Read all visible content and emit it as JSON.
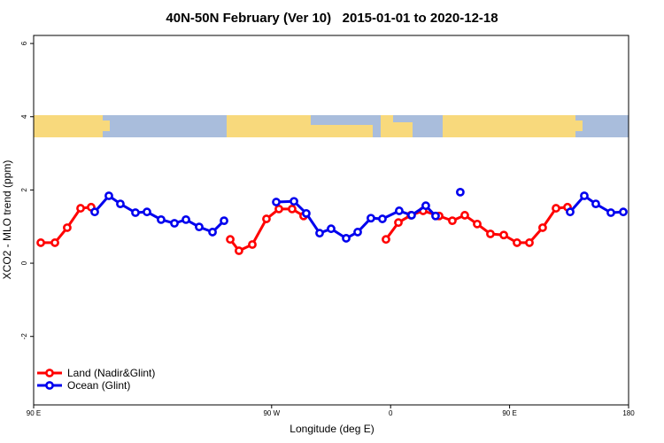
{
  "chart_data": {
    "type": "line",
    "title": "40N-50N February (Ver 10)   2015-01-01 to 2020-12-18",
    "xlabel": "Longitude (deg E)",
    "ylabel": "XCO2 - MLO trend (ppm)",
    "xlim": [
      90,
      540
    ],
    "ylim": [
      -3.87,
      6.22
    ],
    "xticks": [
      {
        "value": 90,
        "label": "90 E"
      },
      180,
      {
        "value": 270,
        "label": "90 W"
      },
      {
        "value": 360,
        "label": "0"
      },
      {
        "value": 450,
        "label": "90 E"
      },
      180.0001
    ],
    "yticks": [
      6,
      4,
      2,
      0,
      -2
    ],
    "legend": "bottomleft",
    "series": [
      {
        "name": "Land (Nadir&Glint)",
        "color": "#ff0000",
        "x": [
          95.4,
          106.1,
          115.4,
          125.5,
          133.5,
          null,
          238.7,
          245.3,
          255.4,
          266.1,
          275.5,
          285.5,
          294.2,
          null,
          356.5,
          365.9,
          375.3,
          384.6,
          396.7,
          406.7,
          416.1,
          425.5,
          435.5,
          445.6,
          455.6,
          465.0,
          475.0,
          485.1,
          493.8
        ],
        "values": [
          0.56,
          0.56,
          0.97,
          1.5,
          1.53,
          null,
          0.65,
          0.34,
          0.51,
          1.21,
          1.48,
          1.48,
          1.29,
          null,
          0.65,
          1.11,
          1.31,
          1.43,
          1.29,
          1.16,
          1.31,
          1.07,
          0.8,
          0.77,
          0.56,
          0.56,
          0.97,
          1.5,
          1.53
        ]
      },
      {
        "name": "Ocean (Glint)",
        "color": "#0000ee",
        "x": [
          136.2,
          146.9,
          155.6,
          167.0,
          175.7,
          186.4,
          196.5,
          205.2,
          215.2,
          225.3,
          234.0,
          null,
          273.5,
          286.9,
          296.2,
          306.3,
          315.0,
          326.4,
          335.1,
          345.1,
          353.8,
          366.5,
          375.9,
          386.6,
          394.0,
          null,
          412.7,
          null,
          495.8,
          506.5,
          515.2,
          526.6,
          536.0
        ],
        "values": [
          1.4,
          1.84,
          1.62,
          1.38,
          1.4,
          1.19,
          1.09,
          1.19,
          0.99,
          0.85,
          1.16,
          null,
          1.67,
          1.69,
          1.36,
          0.82,
          0.94,
          0.68,
          0.85,
          1.23,
          1.21,
          1.43,
          1.31,
          1.57,
          1.29,
          null,
          1.94,
          null,
          1.4,
          1.84,
          1.62,
          1.38,
          1.4
        ]
      }
    ]
  }
}
